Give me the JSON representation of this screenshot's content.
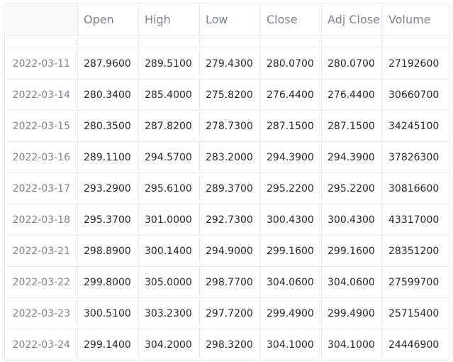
{
  "table": {
    "columns": [
      "",
      "Open",
      "High",
      "Low",
      "Close",
      "Adj Close",
      "Volume"
    ],
    "rows": [
      [
        "2022-03-11",
        "287.9600",
        "289.5100",
        "279.4300",
        "280.0700",
        "280.0700",
        "27192600"
      ],
      [
        "2022-03-14",
        "280.3400",
        "285.4000",
        "275.8200",
        "276.4400",
        "276.4400",
        "30660700"
      ],
      [
        "2022-03-15",
        "280.3500",
        "287.8200",
        "278.7300",
        "287.1500",
        "287.1500",
        "34245100"
      ],
      [
        "2022-03-16",
        "289.1100",
        "294.5700",
        "283.2000",
        "294.3900",
        "294.3900",
        "37826300"
      ],
      [
        "2022-03-17",
        "293.2900",
        "295.6100",
        "289.3700",
        "295.2200",
        "295.2200",
        "30816600"
      ],
      [
        "2022-03-18",
        "295.3700",
        "301.0000",
        "292.7300",
        "300.4300",
        "300.4300",
        "43317000"
      ],
      [
        "2022-03-21",
        "298.8900",
        "300.1400",
        "294.9000",
        "299.1600",
        "299.1600",
        "28351200"
      ],
      [
        "2022-03-22",
        "299.8000",
        "305.0000",
        "298.7700",
        "304.0600",
        "304.0600",
        "27599700"
      ],
      [
        "2022-03-23",
        "300.5100",
        "303.2300",
        "297.7200",
        "299.4900",
        "299.4900",
        "25715400"
      ],
      [
        "2022-03-24",
        "299.1400",
        "304.2000",
        "298.3200",
        "304.1000",
        "304.1000",
        "24446900"
      ]
    ]
  }
}
